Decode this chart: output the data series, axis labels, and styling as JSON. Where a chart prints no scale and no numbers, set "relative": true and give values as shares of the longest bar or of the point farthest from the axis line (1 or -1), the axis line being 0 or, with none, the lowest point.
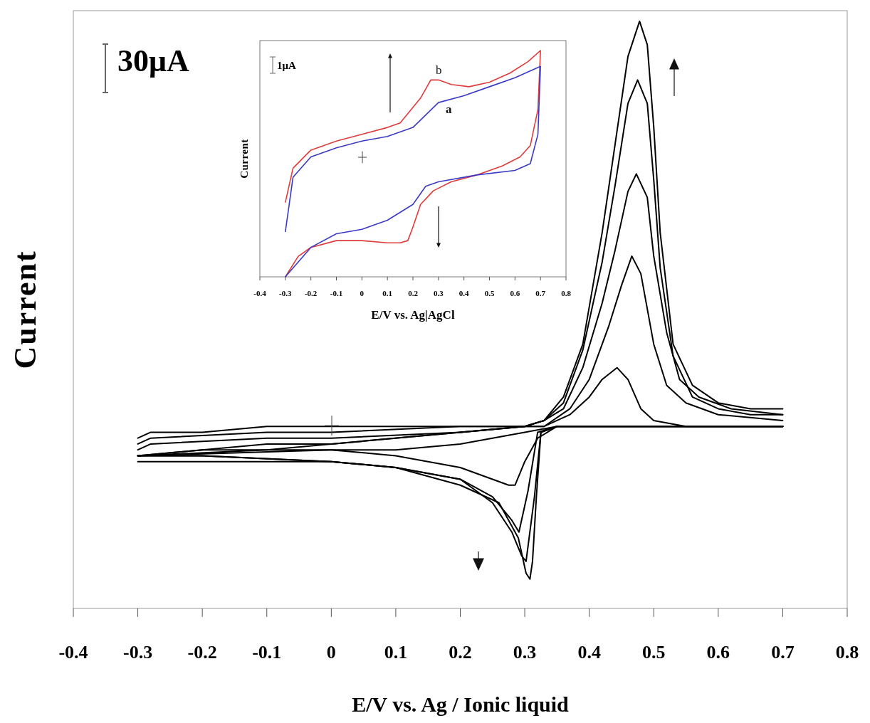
{
  "chart_data": [
    {
      "type": "line",
      "xlabel": "E/V  vs.  Ag / Ionic liquid",
      "ylabel": "Current",
      "relative": true,
      "tick_labels": "x",
      "xlim": [
        -0.4,
        0.8
      ],
      "xticks": [
        -0.4,
        -0.3,
        -0.2,
        -0.1,
        0,
        0.1,
        0.2,
        0.3,
        0.4,
        0.5,
        0.6,
        0.7,
        0.8
      ],
      "annotations": [
        "30μA"
      ],
      "series": [
        {
          "color": "#000000",
          "x": [
            -0.3,
            -0.28,
            -0.2,
            -0.1,
            0,
            0.2,
            0.3,
            0.33,
            0.36,
            0.39,
            0.42,
            0.44,
            0.46,
            0.478,
            0.49,
            0.5,
            0.51,
            0.53,
            0.56,
            0.6,
            0.65,
            0.7
          ],
          "values": [
            0.29,
            0.3,
            0.3,
            0.31,
            0.31,
            0.31,
            0.31,
            0.32,
            0.36,
            0.45,
            0.64,
            0.79,
            0.94,
            1.0,
            0.96,
            0.82,
            0.64,
            0.45,
            0.38,
            0.35,
            0.34,
            0.34
          ]
        },
        {
          "color": "#000000",
          "x": [
            -0.3,
            -0.2,
            -0.1,
            0,
            0.1,
            0.2,
            0.26,
            0.29,
            0.302,
            0.308,
            0.312,
            0.318,
            0.325,
            0.35,
            0.5,
            0.7
          ],
          "values": [
            0.25,
            0.25,
            0.25,
            0.25,
            0.24,
            0.21,
            0.18,
            0.12,
            0.06,
            0.05,
            0.08,
            0.19,
            0.3,
            0.31,
            0.31,
            0.31
          ]
        },
        {
          "color": "#000000",
          "x": [
            -0.3,
            -0.28,
            -0.1,
            0,
            0.2,
            0.3,
            0.33,
            0.36,
            0.39,
            0.42,
            0.44,
            0.46,
            0.475,
            0.49,
            0.5,
            0.51,
            0.53,
            0.56,
            0.6,
            0.65,
            0.7
          ],
          "values": [
            0.28,
            0.29,
            0.3,
            0.3,
            0.31,
            0.31,
            0.32,
            0.35,
            0.44,
            0.59,
            0.72,
            0.86,
            0.9,
            0.86,
            0.73,
            0.58,
            0.43,
            0.36,
            0.34,
            0.33,
            0.33
          ]
        },
        {
          "color": "#000000",
          "x": [
            -0.3,
            -0.2,
            0,
            0.1,
            0.2,
            0.25,
            0.28,
            0.295,
            0.302,
            0.315,
            0.325,
            0.35,
            0.7
          ],
          "values": [
            0.26,
            0.26,
            0.25,
            0.24,
            0.22,
            0.18,
            0.13,
            0.09,
            0.08,
            0.19,
            0.3,
            0.31,
            0.31
          ]
        },
        {
          "color": "#000000",
          "x": [
            -0.3,
            -0.28,
            -0.1,
            0,
            0.2,
            0.3,
            0.33,
            0.36,
            0.39,
            0.42,
            0.44,
            0.46,
            0.473,
            0.49,
            0.5,
            0.52,
            0.54,
            0.57,
            0.62,
            0.7
          ],
          "values": [
            0.27,
            0.28,
            0.29,
            0.29,
            0.3,
            0.31,
            0.32,
            0.34,
            0.41,
            0.52,
            0.61,
            0.71,
            0.74,
            0.7,
            0.6,
            0.47,
            0.39,
            0.36,
            0.34,
            0.33
          ]
        },
        {
          "color": "#000000",
          "x": [
            -0.3,
            -0.2,
            0,
            0.1,
            0.2,
            0.25,
            0.28,
            0.291,
            0.305,
            0.32,
            0.35,
            0.7
          ],
          "values": [
            0.26,
            0.26,
            0.25,
            0.24,
            0.22,
            0.19,
            0.15,
            0.13,
            0.2,
            0.3,
            0.31,
            0.31
          ]
        },
        {
          "color": "#000000",
          "x": [
            -0.3,
            -0.1,
            0,
            0.2,
            0.3,
            0.33,
            0.37,
            0.4,
            0.43,
            0.45,
            0.466,
            0.48,
            0.5,
            0.52,
            0.55,
            0.6,
            0.7
          ],
          "values": [
            0.26,
            0.28,
            0.28,
            0.3,
            0.31,
            0.31,
            0.34,
            0.39,
            0.48,
            0.55,
            0.6,
            0.57,
            0.45,
            0.38,
            0.35,
            0.33,
            0.32
          ]
        },
        {
          "color": "#000000",
          "x": [
            -0.3,
            -0.2,
            0,
            0.1,
            0.2,
            0.25,
            0.275,
            0.285,
            0.3,
            0.32,
            0.35,
            0.7
          ],
          "values": [
            0.26,
            0.27,
            0.27,
            0.26,
            0.24,
            0.22,
            0.21,
            0.21,
            0.25,
            0.29,
            0.31,
            0.31
          ]
        },
        {
          "color": "#000000",
          "x": [
            -0.3,
            -0.1,
            0,
            0.2,
            0.3,
            0.33,
            0.37,
            0.4,
            0.42,
            0.443,
            0.46,
            0.48,
            0.5,
            0.55,
            0.7
          ],
          "values": [
            0.26,
            0.27,
            0.28,
            0.3,
            0.31,
            0.31,
            0.33,
            0.36,
            0.39,
            0.41,
            0.39,
            0.34,
            0.32,
            0.31,
            0.31
          ]
        },
        {
          "color": "#000000",
          "x": [
            -0.3,
            0,
            0.1,
            0.2,
            0.3,
            0.35,
            0.7
          ],
          "values": [
            0.26,
            0.27,
            0.27,
            0.28,
            0.3,
            0.31,
            0.31
          ]
        }
      ]
    },
    {
      "type": "line",
      "xlabel": "E/V vs. Ag|AgCl",
      "ylabel": "Current",
      "relative": true,
      "tick_labels": "x",
      "xlim": [
        -0.4,
        0.8
      ],
      "xticks": [
        -0.4,
        -0.3,
        -0.2,
        -0.1,
        0,
        0.1,
        0.2,
        0.3,
        0.4,
        0.5,
        0.6,
        0.7,
        0.8
      ],
      "annotations": [
        "1μA"
      ],
      "series": [
        {
          "name": "b",
          "color": "#e03a3a",
          "x": [
            -0.3,
            -0.25,
            -0.2,
            -0.1,
            0,
            0.1,
            0.15,
            0.18,
            0.2,
            0.23,
            0.28,
            0.35,
            0.45,
            0.55,
            0.62,
            0.66,
            0.69,
            0.7,
            0.65,
            0.58,
            0.5,
            0.42,
            0.35,
            0.3,
            0.27,
            0.23,
            0.15,
            0.1,
            0,
            -0.1,
            -0.2,
            -0.27,
            -0.3
          ],
          "values": [
            0,
            0.09,
            0.13,
            0.16,
            0.16,
            0.15,
            0.15,
            0.16,
            0.22,
            0.32,
            0.38,
            0.42,
            0.45,
            0.49,
            0.53,
            0.58,
            0.74,
            1.0,
            0.95,
            0.9,
            0.86,
            0.84,
            0.85,
            0.87,
            0.87,
            0.79,
            0.68,
            0.66,
            0.63,
            0.6,
            0.56,
            0.48,
            0.33
          ]
        },
        {
          "name": "a",
          "color": "#3a3ac8",
          "x": [
            -0.3,
            -0.2,
            -0.1,
            0,
            0.1,
            0.2,
            0.25,
            0.3,
            0.45,
            0.6,
            0.66,
            0.69,
            0.7,
            0.6,
            0.5,
            0.4,
            0.3,
            0.2,
            0.1,
            0,
            -0.1,
            -0.2,
            -0.27,
            -0.3
          ],
          "values": [
            0,
            0.13,
            0.19,
            0.21,
            0.25,
            0.32,
            0.4,
            0.42,
            0.45,
            0.47,
            0.5,
            0.63,
            0.93,
            0.88,
            0.84,
            0.8,
            0.77,
            0.66,
            0.62,
            0.6,
            0.57,
            0.53,
            0.44,
            0.2
          ]
        }
      ]
    }
  ]
}
